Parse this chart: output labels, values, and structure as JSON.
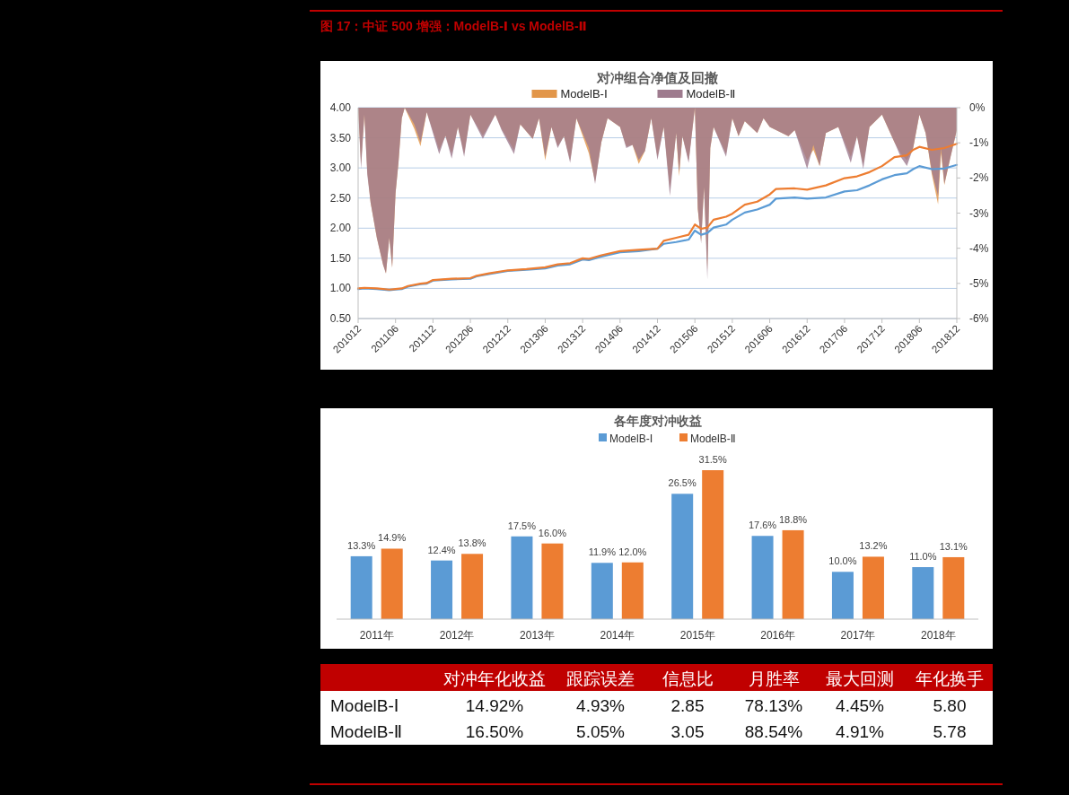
{
  "chart_data": [
    {
      "type": "line",
      "title": "对冲组合净值及回撤",
      "annotations": [
        "图 17：中证 500 增强：ModelB-Ⅰ vs ModelB-Ⅱ"
      ],
      "legend": "top",
      "grid": "y",
      "xlim": [
        "2010-12",
        "2018-12"
      ],
      "xticks": [
        {
          "value": "2010-12",
          "label": "201012"
        },
        {
          "value": "2011-06",
          "label": "201106"
        },
        {
          "value": "2011-12",
          "label": "201112"
        },
        {
          "value": "2012-06",
          "label": "201206"
        },
        {
          "value": "2012-12",
          "label": "201212"
        },
        {
          "value": "2013-06",
          "label": "201306"
        },
        {
          "value": "2013-12",
          "label": "201312"
        },
        {
          "value": "2014-06",
          "label": "201406"
        },
        {
          "value": "2014-12",
          "label": "201412"
        },
        {
          "value": "2015-06",
          "label": "201506"
        },
        {
          "value": "2015-12",
          "label": "201512"
        },
        {
          "value": "2016-06",
          "label": "201606"
        },
        {
          "value": "2016-12",
          "label": "201612"
        },
        {
          "value": "2017-06",
          "label": "201706"
        },
        {
          "value": "2017-12",
          "label": "201712"
        },
        {
          "value": "2018-06",
          "label": "201806"
        },
        {
          "value": "2018-12",
          "label": "201812"
        }
      ],
      "ylim": [
        0.5,
        4
      ],
      "yticks": [
        {
          "value": 0.5,
          "label": "0.50"
        },
        {
          "value": 1,
          "label": "1.00"
        },
        {
          "value": 1.5,
          "label": "1.50"
        },
        {
          "value": 2,
          "label": "2.00"
        },
        {
          "value": 2.5,
          "label": "2.50"
        },
        {
          "value": 3,
          "label": "3.00"
        },
        {
          "value": 3.5,
          "label": "3.50"
        },
        {
          "value": 4,
          "label": "4.00"
        }
      ],
      "y2lim": [
        -6,
        0
      ],
      "y2ticks": [
        {
          "value": -6,
          "label": "-6%"
        },
        {
          "value": -5,
          "label": "-5%"
        },
        {
          "value": -4,
          "label": "-4%"
        },
        {
          "value": -3,
          "label": "-3%"
        },
        {
          "value": -2,
          "label": "-2%"
        },
        {
          "value": -1,
          "label": "-1%"
        },
        {
          "value": 0,
          "label": "0%"
        }
      ],
      "series": [
        {
          "name": "ModelB-Ⅰ",
          "type": "area",
          "axis": "y2",
          "color": "#e2964a",
          "x": [
            "2010-12",
            "2010-12-15",
            "2011-01",
            "2011-01-15",
            "2011-02",
            "2011-03",
            "2011-04",
            "2011-04-15",
            "2011-05",
            "2011-05-15",
            "2011-06",
            "2011-06-15",
            "2011-07",
            "2011-07-15",
            "2011-09",
            "2011-10",
            "2011-11",
            "2012-01",
            "2012-02",
            "2012-03",
            "2012-04",
            "2012-05",
            "2012-06",
            "2012-08",
            "2012-10",
            "2012-11",
            "2013-01",
            "2013-02",
            "2013-04",
            "2013-05",
            "2013-06",
            "2013-07",
            "2013-08",
            "2013-09",
            "2013-10",
            "2013-11",
            "2014-01",
            "2014-02",
            "2014-03",
            "2014-04",
            "2014-06",
            "2014-07",
            "2014-08",
            "2014-09",
            "2014-10",
            "2014-11",
            "2014-12",
            "2015-01",
            "2015-02",
            "2015-03",
            "2015-03-15",
            "2015-04",
            "2015-05",
            "2015-06",
            "2015-06-15",
            "2015-07",
            "2015-07-15",
            "2015-08",
            "2015-08-15",
            "2015-09",
            "2015-11",
            "2015-12",
            "2016-01",
            "2016-02",
            "2016-04",
            "2016-05",
            "2016-06",
            "2016-09",
            "2016-10",
            "2016-12",
            "2017-01",
            "2017-02",
            "2017-03",
            "2017-05",
            "2017-07",
            "2017-08",
            "2017-09",
            "2017-10",
            "2017-12",
            "2018-02",
            "2018-03",
            "2018-04",
            "2018-05",
            "2018-06",
            "2018-07",
            "2018-08",
            "2018-09",
            "2018-09-15",
            "2018-10",
            "2018-11",
            "2018-12"
          ],
          "values": [
            0,
            -1.6,
            -0.2,
            -1.8,
            -2.7,
            -3.7,
            -4.47,
            -4.72,
            -3.7,
            -4.55,
            -2.43,
            -1.57,
            -0.3,
            0,
            -0.6,
            -1.1,
            -0.13,
            -1.2,
            -0.8,
            -1.3,
            -0.55,
            -1.3,
            -0.2,
            -0.8,
            -0.2,
            -0.6,
            -1.2,
            -0.47,
            -0.89,
            -0.3,
            -1.5,
            -0.55,
            -1.1,
            -0.81,
            -1.5,
            -0.3,
            -1.3,
            -2.1,
            -0.98,
            -0.3,
            -0.55,
            -1.1,
            -1.06,
            -1.6,
            -1.23,
            -0.3,
            -1.4,
            -0.55,
            -2.3,
            -0.72,
            -1.95,
            -0.81,
            -1.5,
            0,
            -2.9,
            -3.8,
            -2.26,
            -4.6,
            -1.15,
            -0.55,
            -1.3,
            -0.3,
            -0.81,
            -0.38,
            -0.72,
            -0.3,
            -0.55,
            -0.81,
            -0.64,
            -1.5,
            -1.2,
            -1.66,
            -0.72,
            -0.55,
            -1.4,
            -0.81,
            -1.6,
            -0.55,
            -0.2,
            -0.98,
            -1.3,
            -1.5,
            -1.15,
            -0.2,
            -0.72,
            -1.9,
            -2.75,
            -1.3,
            -2.2,
            -1.4,
            -0.64
          ]
        },
        {
          "name": "ModelB-Ⅱ",
          "type": "area",
          "axis": "y2",
          "color": "#9e7b8e",
          "x": [
            "2010-12",
            "2010-12-15",
            "2011-01",
            "2011-01-15",
            "2011-02",
            "2011-03",
            "2011-04",
            "2011-04-15",
            "2011-05",
            "2011-05-15",
            "2011-06",
            "2011-06-15",
            "2011-07",
            "2011-07-15",
            "2011-09",
            "2011-10",
            "2011-11",
            "2012-01",
            "2012-02",
            "2012-03",
            "2012-04",
            "2012-05",
            "2012-06",
            "2012-08",
            "2012-10",
            "2012-11",
            "2013-01",
            "2013-02",
            "2013-04",
            "2013-05",
            "2013-06",
            "2013-07",
            "2013-08",
            "2013-09",
            "2013-10",
            "2013-11",
            "2014-01",
            "2014-02",
            "2014-03",
            "2014-04",
            "2014-06",
            "2014-07",
            "2014-08",
            "2014-09",
            "2014-10",
            "2014-11",
            "2014-12",
            "2015-01",
            "2015-02",
            "2015-03",
            "2015-03-15",
            "2015-04",
            "2015-05",
            "2015-06",
            "2015-06-15",
            "2015-07",
            "2015-07-15",
            "2015-08",
            "2015-08-15",
            "2015-09",
            "2015-11",
            "2015-12",
            "2016-01",
            "2016-02",
            "2016-04",
            "2016-05",
            "2016-06",
            "2016-09",
            "2016-10",
            "2016-12",
            "2017-01",
            "2017-02",
            "2017-03",
            "2017-05",
            "2017-07",
            "2017-08",
            "2017-09",
            "2017-10",
            "2017-12",
            "2018-02",
            "2018-03",
            "2018-04",
            "2018-05",
            "2018-06",
            "2018-07",
            "2018-08",
            "2018-09",
            "2018-09-15",
            "2018-10",
            "2018-11",
            "2018-12"
          ],
          "values": [
            0,
            -1.74,
            -0.2,
            -1.9,
            -2.7,
            -3.7,
            -4.47,
            -4.72,
            -3.7,
            -4.55,
            -2.43,
            -1.57,
            -0.3,
            0,
            -0.47,
            -0.98,
            -0.13,
            -1.32,
            -0.8,
            -1.45,
            -0.55,
            -1.4,
            -0.2,
            -0.89,
            -0.2,
            -0.64,
            -1.32,
            -0.47,
            -0.89,
            -0.3,
            -1.4,
            -0.55,
            -1.15,
            -0.81,
            -1.57,
            -0.3,
            -1.15,
            -2.17,
            -0.98,
            -0.3,
            -0.55,
            -1.15,
            -1.06,
            -1.49,
            -1.23,
            -0.3,
            -1.49,
            -0.55,
            -2.51,
            -0.72,
            -1.83,
            -0.81,
            -1.57,
            0,
            -2.85,
            -3.87,
            -2.26,
            -4.89,
            -1.15,
            -0.55,
            -1.4,
            -0.3,
            -0.81,
            -0.38,
            -0.72,
            -0.3,
            -0.55,
            -0.81,
            -0.64,
            -1.74,
            -1.06,
            -1.66,
            -0.72,
            -0.55,
            -1.57,
            -0.81,
            -1.74,
            -0.55,
            -0.2,
            -0.98,
            -1.4,
            -1.66,
            -1.15,
            -0.2,
            -0.72,
            -1.83,
            -2.51,
            -1.15,
            -2.17,
            -1.4,
            -0.64
          ]
        },
        {
          "type": "line",
          "color": "#5b9bd5",
          "x": [
            "2010-12",
            "2011-01",
            "2011-03",
            "2011-05",
            "2011-06",
            "2011-07",
            "2011-08",
            "2011-10",
            "2011-11",
            "2011-12",
            "2012-03",
            "2012-06",
            "2012-07",
            "2012-09",
            "2012-12",
            "2013-03",
            "2013-06",
            "2013-08",
            "2013-10",
            "2013-12",
            "2014-01",
            "2014-03",
            "2014-06",
            "2014-09",
            "2014-12",
            "2015-01",
            "2015-03",
            "2015-05",
            "2015-06",
            "2015-07",
            "2015-08",
            "2015-09",
            "2015-11",
            "2015-12",
            "2016-02",
            "2016-04",
            "2016-06",
            "2016-07",
            "2016-10",
            "2016-12",
            "2017-03",
            "2017-06",
            "2017-08",
            "2017-10",
            "2017-12",
            "2018-02",
            "2018-04",
            "2018-05",
            "2018-06",
            "2018-08",
            "2018-10",
            "2018-12"
          ],
          "values": [
            0.99,
            1.0,
            0.99,
            0.97,
            0.98,
            0.99,
            1.03,
            1.07,
            1.08,
            1.13,
            1.15,
            1.16,
            1.2,
            1.24,
            1.29,
            1.31,
            1.33,
            1.38,
            1.4,
            1.48,
            1.47,
            1.53,
            1.6,
            1.62,
            1.66,
            1.74,
            1.77,
            1.81,
            1.96,
            1.89,
            1.92,
            2.01,
            2.06,
            2.14,
            2.26,
            2.31,
            2.39,
            2.49,
            2.51,
            2.49,
            2.51,
            2.61,
            2.63,
            2.71,
            2.81,
            2.88,
            2.91,
            2.98,
            3.03,
            2.98,
            2.99,
            3.05
          ]
        },
        {
          "type": "line",
          "color": "#ed7d31",
          "x": [
            "2010-12",
            "2011-01",
            "2011-03",
            "2011-05",
            "2011-06",
            "2011-07",
            "2011-08",
            "2011-10",
            "2011-11",
            "2011-12",
            "2012-03",
            "2012-06",
            "2012-07",
            "2012-09",
            "2012-12",
            "2013-03",
            "2013-06",
            "2013-08",
            "2013-10",
            "2013-12",
            "2014-01",
            "2014-03",
            "2014-06",
            "2014-09",
            "2014-12",
            "2015-01",
            "2015-03",
            "2015-05",
            "2015-06",
            "2015-07",
            "2015-08",
            "2015-09",
            "2015-11",
            "2015-12",
            "2016-02",
            "2016-04",
            "2016-06",
            "2016-07",
            "2016-10",
            "2016-12",
            "2017-03",
            "2017-06",
            "2017-08",
            "2017-10",
            "2017-12",
            "2018-02",
            "2018-04",
            "2018-05",
            "2018-06",
            "2018-08",
            "2018-10",
            "2018-12"
          ],
          "values": [
            1.0,
            1.01,
            1.0,
            0.98,
            0.99,
            1.0,
            1.04,
            1.08,
            1.09,
            1.14,
            1.16,
            1.17,
            1.21,
            1.25,
            1.3,
            1.32,
            1.35,
            1.4,
            1.42,
            1.5,
            1.49,
            1.55,
            1.62,
            1.64,
            1.66,
            1.79,
            1.84,
            1.89,
            2.06,
            1.99,
            2.01,
            2.14,
            2.19,
            2.24,
            2.39,
            2.44,
            2.56,
            2.65,
            2.66,
            2.64,
            2.71,
            2.83,
            2.86,
            2.93,
            3.03,
            3.18,
            3.21,
            3.3,
            3.35,
            3.3,
            3.33,
            3.4
          ]
        }
      ]
    },
    {
      "type": "bar",
      "title": "各年度对冲收益",
      "legend": "top",
      "categories": [
        "2011年",
        "2012年",
        "2013年",
        "2014年",
        "2015年",
        "2016年",
        "2017年",
        "2018年"
      ],
      "series": [
        {
          "name": "ModelB-Ⅰ",
          "color": "#5b9bd5",
          "values": [
            13.3,
            12.4,
            17.5,
            11.9,
            26.5,
            17.6,
            10.0,
            11.0
          ],
          "value_labels": [
            "13.3%",
            "12.4%",
            "17.5%",
            "11.9%",
            "26.5%",
            "17.6%",
            "10.0%",
            "11.0%"
          ]
        },
        {
          "name": "ModelB-Ⅱ",
          "color": "#ed7d31",
          "values": [
            14.9,
            13.8,
            16.0,
            12.0,
            31.5,
            18.8,
            13.2,
            13.1
          ],
          "value_labels": [
            "14.9%",
            "13.8%",
            "16.0%",
            "12.0%",
            "31.5%",
            "18.8%",
            "13.2%",
            "13.1%"
          ]
        }
      ]
    },
    {
      "type": "other",
      "categories": [
        "对冲年化收益",
        "跟踪误差",
        "信息比",
        "月胜率",
        "最大回测",
        "年化换手"
      ],
      "y_categories": [
        "ModelB-Ⅰ",
        "ModelB-Ⅱ"
      ],
      "cell_labels": [
        [
          "14.92%",
          "4.93%",
          "2.85",
          "78.13%",
          "4.45%",
          "5.80"
        ],
        [
          "16.50%",
          "5.05%",
          "3.05",
          "88.54%",
          "4.91%",
          "5.78"
        ]
      ]
    }
  ]
}
